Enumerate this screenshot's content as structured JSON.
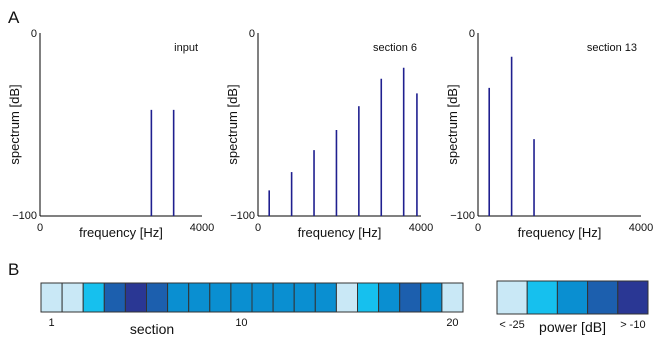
{
  "panel_labels": {
    "a": "A",
    "b": "B"
  },
  "colors": {
    "stem": "#1f1f8f",
    "axis": "#000000",
    "cell_border": "#333333",
    "power_scale": [
      "#c9e8f6",
      "#16c0ee",
      "#0a8fd1",
      "#1c5fae",
      "#2a3794"
    ]
  },
  "chart_data": [
    {
      "type": "bar",
      "style": "stem",
      "corner_label": "input",
      "xlabel": "frequency [Hz]",
      "ylabel": "spectrum [dB]",
      "xlim": [
        0,
        4000
      ],
      "ylim": [
        -100,
        0
      ],
      "xticks": [
        "0",
        "4000"
      ],
      "yticks": [
        "0",
        "−100"
      ],
      "x": [
        2750,
        3300
      ],
      "y": [
        -42,
        -42
      ]
    },
    {
      "type": "bar",
      "style": "stem",
      "corner_label": "section 6",
      "xlabel": "frequency [Hz]",
      "ylabel": "spectrum [dB]",
      "xlim": [
        0,
        4000
      ],
      "ylim": [
        -100,
        0
      ],
      "xticks": [
        "0",
        "4000"
      ],
      "yticks": [
        "0",
        "−100"
      ],
      "x": [
        275,
        825,
        1375,
        1925,
        2475,
        3025,
        3575,
        3900
      ],
      "y": [
        -86,
        -76,
        -64,
        -53,
        -40,
        -25,
        -19,
        -33
      ]
    },
    {
      "type": "bar",
      "style": "stem",
      "corner_label": "section 13",
      "xlabel": "frequency [Hz]",
      "ylabel": "spectrum [dB]",
      "xlim": [
        0,
        4000
      ],
      "ylim": [
        -100,
        0
      ],
      "xticks": [
        "0",
        "4000"
      ],
      "yticks": [
        "0",
        "−100"
      ],
      "x": [
        275,
        825,
        1375
      ],
      "y": [
        -30,
        -13,
        -58
      ]
    },
    {
      "type": "heatmap",
      "xlabel": "section",
      "tick_labels": [
        {
          "index": 1,
          "label": "1"
        },
        {
          "index": 10,
          "label": "10"
        },
        {
          "index": 20,
          "label": "20"
        }
      ],
      "values": [
        0,
        0,
        1,
        3,
        4,
        3,
        2,
        2,
        2,
        2,
        2,
        2,
        2,
        2,
        0,
        1,
        2,
        3,
        2,
        0
      ]
    },
    {
      "type": "heatmap",
      "legend": true,
      "xlabel": "power [dB]",
      "min_label": "< -25",
      "max_label": "> -10",
      "levels": [
        0,
        1,
        2,
        3,
        4
      ]
    }
  ]
}
